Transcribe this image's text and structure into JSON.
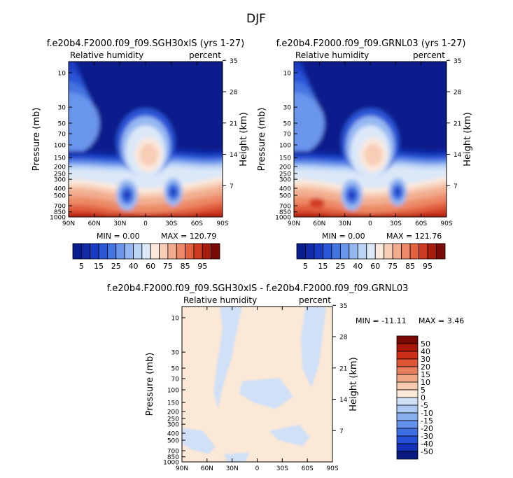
{
  "title": "DJF",
  "palette": {
    "rh": [
      "#0a1c8c",
      "#102aa8",
      "#1a3cc4",
      "#2a55d6",
      "#4474e2",
      "#6a95ec",
      "#94b7f2",
      "#bcd3f6",
      "#dbe8f8",
      "#fbe8dc",
      "#f7cdb6",
      "#f2ad8f",
      "#ec8a68",
      "#e2623f",
      "#d03a20",
      "#a81e0e",
      "#7a0a06"
    ],
    "diff": [
      "#081a80",
      "#1430b4",
      "#2450d8",
      "#3e6fe6",
      "#6290ec",
      "#8aafef",
      "#adc8f2",
      "#cfe0f7",
      "#fbe8d6",
      "#f7cbb0",
      "#f0a886",
      "#e9805d",
      "#df5637",
      "#cc2e17",
      "#a9170a",
      "#7a0804"
    ]
  },
  "chart_data": [
    {
      "type": "heatmap",
      "name": "panel-left",
      "title": "f.e20b4.F2000.f09_f09.SGH30xlS (yrs 1-27)",
      "variable": "Relative humidity",
      "units": "percent",
      "ylabel": "Pressure (mb)",
      "ylabel_right": "Height (km)",
      "xticks": [
        "90N",
        "60N",
        "30N",
        "0",
        "30S",
        "60S",
        "90S"
      ],
      "yticks": [
        "10",
        "30",
        "50",
        "70",
        "100",
        "150",
        "200",
        "250",
        "300",
        "400",
        "500",
        "700",
        "850",
        "1000"
      ],
      "height_ticks": [
        "35",
        "28",
        "21",
        "14",
        "7"
      ],
      "min_label": "MIN =    0.00",
      "max_label": "MAX = 120.79",
      "colorbar_labels": [
        "5",
        "15",
        "25",
        "40",
        "60",
        "75",
        "85",
        "95"
      ]
    },
    {
      "type": "heatmap",
      "name": "panel-right",
      "title": "f.e20b4.F2000.f09_f09.GRNL03 (yrs 1-27)",
      "variable": "Relative humidity",
      "units": "percent",
      "ylabel": "Pressure (mb)",
      "ylabel_right": "Height (km)",
      "xticks": [
        "90N",
        "60N",
        "30N",
        "0",
        "30S",
        "60S",
        "90S"
      ],
      "yticks": [
        "10",
        "30",
        "50",
        "70",
        "100",
        "150",
        "200",
        "250",
        "300",
        "400",
        "500",
        "700",
        "850",
        "1000"
      ],
      "height_ticks": [
        "35",
        "28",
        "21",
        "14",
        "7"
      ],
      "min_label": "MIN =    0.00",
      "max_label": "MAX = 121.76",
      "colorbar_labels": [
        "5",
        "15",
        "25",
        "40",
        "60",
        "75",
        "85",
        "95"
      ]
    },
    {
      "type": "heatmap",
      "name": "panel-diff",
      "title": "f.e20b4.F2000.f09_f09.SGH30xlS - f.e20b4.F2000.f09_f09.GRNL03",
      "variable": "Relative humidity",
      "units": "percent",
      "ylabel": "Pressure (mb)",
      "ylabel_right": "Height (km)",
      "xticks": [
        "90N",
        "60N",
        "30N",
        "0",
        "30S",
        "60S",
        "90S"
      ],
      "yticks": [
        "10",
        "30",
        "50",
        "70",
        "100",
        "150",
        "200",
        "250",
        "300",
        "400",
        "500",
        "700",
        "850",
        "1000"
      ],
      "height_ticks": [
        "35",
        "28",
        "21",
        "14",
        "7"
      ],
      "min_label": "MIN = -11.11",
      "max_label": "MAX =   3.46",
      "colorbar_labels": [
        "50",
        "40",
        "30",
        "20",
        "15",
        "10",
        "5",
        "0",
        "-5",
        "-10",
        "-15",
        "-20",
        "-30",
        "-40",
        "-50"
      ]
    }
  ]
}
